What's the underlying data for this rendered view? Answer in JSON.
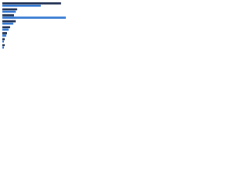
{
  "chart_data": {
    "type": "hbar",
    "categories": [
      null,
      null,
      null,
      null,
      null,
      null,
      null,
      null
    ],
    "series": [
      {
        "color": "#1c2d4f",
        "values": [
          75,
          19,
          15,
          17,
          10,
          6,
          3,
          3
        ]
      },
      {
        "color": "#2f76d2",
        "values": [
          49,
          17,
          81,
          14,
          8,
          5,
          2,
          2
        ]
      }
    ]
  }
}
